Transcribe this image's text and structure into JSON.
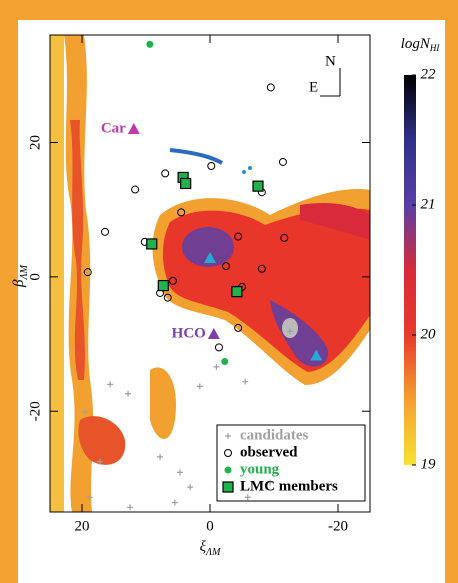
{
  "chart_data": {
    "type": "scatter",
    "xlabel": "ξ",
    "xlabel_sub": "ΛM",
    "ylabel": "β",
    "ylabel_sub": "ΛM",
    "xlim": [
      25,
      -25
    ],
    "ylim": [
      -35,
      36
    ],
    "xticks": [
      20,
      0,
      -20
    ],
    "yticks": [
      20,
      0,
      -20
    ],
    "series": [
      {
        "name": "candidates",
        "color": "#a0a0a0",
        "marker": "plus",
        "x": [
          15.6,
          12.8,
          5.5,
          3.1,
          4.7,
          7.8,
          17.2,
          18.8,
          12.5,
          -5.9,
          -9.4,
          -5.5,
          1.6,
          -12.5,
          19.5,
          -1.0
        ],
        "y": [
          -16.0,
          -17.4,
          -33.6,
          -31.3,
          -29.1,
          -26.8,
          -27.5,
          -32.8,
          -34.3,
          -32.8,
          -30.6,
          -15.6,
          -16.3,
          -8.1,
          -20.1,
          -13.4
        ]
      },
      {
        "name": "observed",
        "color": "#000000",
        "marker": "circle",
        "x": [
          -9.5,
          7.0,
          -0.2,
          -11.4,
          -8.1,
          4.5,
          16.4,
          10.2,
          -4.4,
          -11.6,
          19.1,
          -8.1,
          7.8,
          5.8,
          6.6,
          -5.0,
          -4.4,
          -1.4,
          -2.5,
          11.7
        ],
        "y": [
          28.2,
          15.4,
          16.5,
          17.1,
          12.6,
          9.6,
          6.7,
          5.2,
          6.0,
          5.8,
          0.7,
          1.2,
          -2.4,
          -0.6,
          -3.1,
          -1.5,
          -7.6,
          -10.5,
          1.6,
          13.0
        ]
      },
      {
        "name": "young",
        "color": "#22b24c",
        "marker": "dot",
        "x": [
          9.4,
          -2.3
        ],
        "y": [
          34.6,
          -12.6
        ]
      },
      {
        "name": "LMC members",
        "color": "#000000",
        "fill": "#22b24c",
        "marker": "square",
        "x": [
          4.2,
          3.8,
          -7.5,
          9.1,
          7.3,
          -4.2
        ],
        "y": [
          14.8,
          13.9,
          13.5,
          4.9,
          -1.3,
          -2.2
        ]
      }
    ],
    "markers": [
      {
        "label": "Car",
        "x": 11.9,
        "y": 22.0,
        "color": "#c03aa8"
      },
      {
        "label": "HCO",
        "x": -0.6,
        "y": -8.5,
        "color": "#7b3fb0"
      },
      {
        "x": 0.0,
        "y": 2.8,
        "color": "#29a9d6"
      },
      {
        "x": -16.6,
        "y": -11.7,
        "color": "#29a9d6"
      }
    ],
    "compass": {
      "north": "N",
      "east": "E"
    },
    "colorbar": {
      "label": "logN",
      "label_sub": "HI",
      "lim": [
        19,
        22
      ],
      "ticks": [
        19,
        20,
        21,
        22
      ],
      "colors": [
        "#f7e330",
        "#f5a030",
        "#e83a2a",
        "#d82a3a",
        "#5a3fa6",
        "#30308a",
        "#000000"
      ]
    }
  }
}
